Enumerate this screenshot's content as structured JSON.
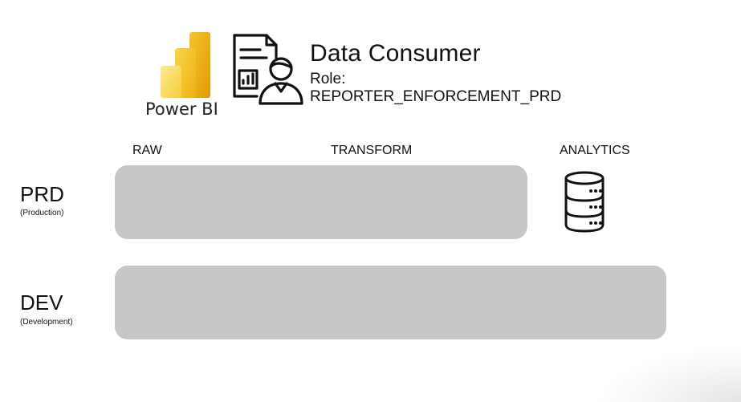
{
  "tool": {
    "label": "Power BI",
    "icon": "power-bi-logo-icon"
  },
  "consumer": {
    "title": "Data Consumer",
    "role_label": "Role:",
    "role_value": "REPORTER_ENFORCEMENT_PRD",
    "icon": "report-user-icon"
  },
  "columns": [
    "RAW",
    "TRANSFORM",
    "ANALYTICS"
  ],
  "environments": [
    {
      "name": "PRD",
      "subtitle": "(Production)"
    },
    {
      "name": "DEV",
      "subtitle": "(Development)"
    }
  ],
  "analytics_icon": "database-icon",
  "colors": {
    "band": "#c7c7c7",
    "powerbi_dark": "#e8a40b",
    "powerbi_mid": "#f2c322",
    "powerbi_light": "#fae17a"
  }
}
